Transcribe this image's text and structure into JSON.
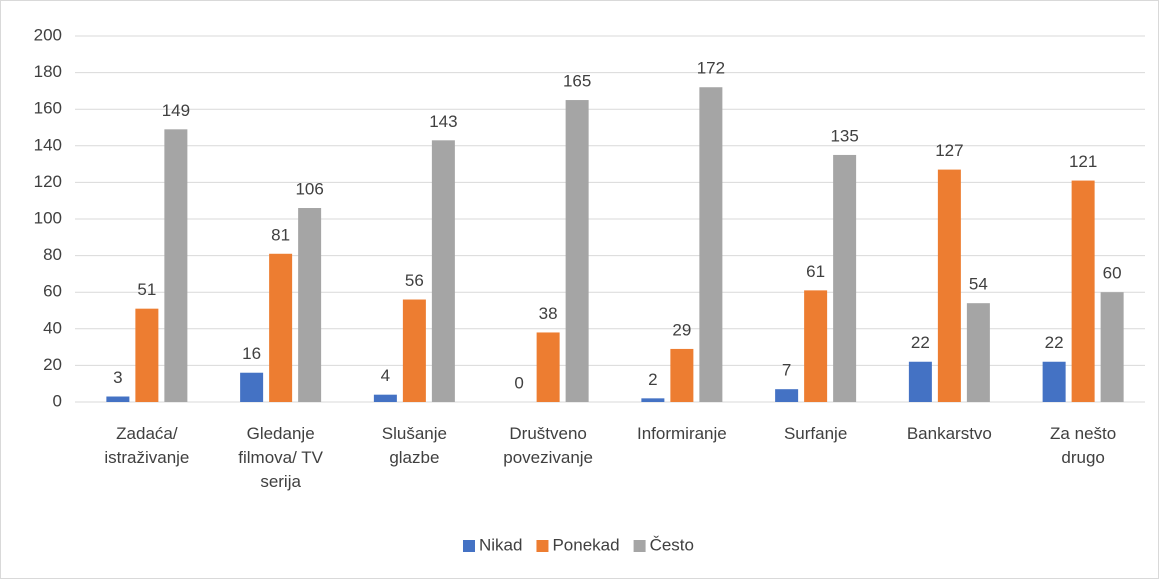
{
  "chart_data": {
    "type": "bar",
    "categories": [
      "Zadaća/ istraživanje",
      "Gledanje filmova/ TV serija",
      "Slušanje glazbe",
      "Društveno povezivanje",
      "Informiranje",
      "Surfanje",
      "Bankarstvo",
      "Za nešto drugo"
    ],
    "series": [
      {
        "name": "Nikad",
        "color": "#4472c4",
        "values": [
          3,
          16,
          4,
          0,
          2,
          7,
          22,
          22
        ]
      },
      {
        "name": "Ponekad",
        "color": "#ed7d31",
        "values": [
          51,
          81,
          56,
          38,
          29,
          61,
          127,
          121
        ]
      },
      {
        "name": "Često",
        "color": "#a5a5a5",
        "values": [
          149,
          106,
          143,
          165,
          172,
          135,
          54,
          60
        ]
      }
    ],
    "ylim": [
      0,
      200
    ],
    "yticks": [
      0,
      20,
      40,
      60,
      80,
      100,
      120,
      140,
      160,
      180,
      200
    ],
    "grid": true,
    "legend": "bottom"
  }
}
